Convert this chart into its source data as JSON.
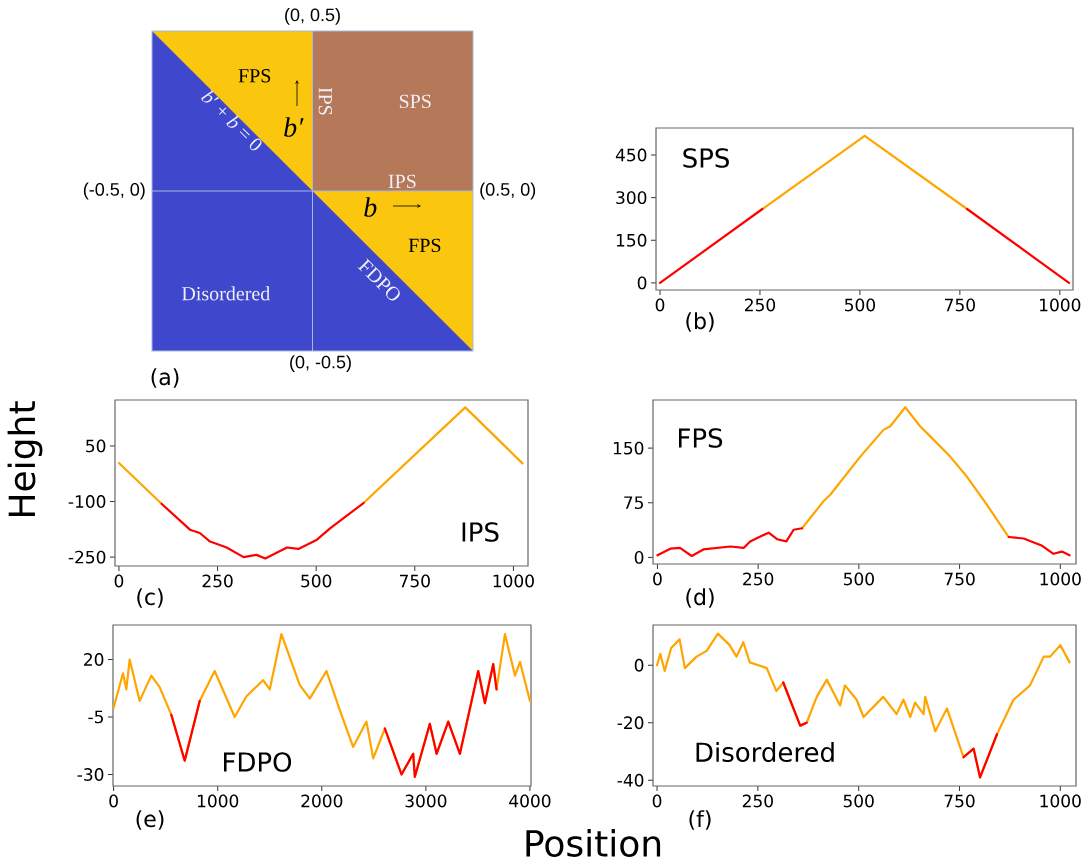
{
  "chart_data": [
    {
      "type": "other",
      "annotations": [
        "(0, 0.5)",
        "(-0.5, 0)",
        "(0.5, 0)",
        "(0, -0.5)",
        "FPS",
        "SPS",
        "IPS",
        "IPS",
        "FPS",
        "FDPO",
        "Disordered",
        "*b*′ + *b* = 0",
        "b′",
        "b",
        "(a)"
      ]
    },
    {
      "type": "line",
      "title": "SPS",
      "annotations": [
        "(b)"
      ],
      "x": [
        0,
        256,
        512,
        768,
        1023
      ],
      "series": [
        {
          "color": "#ffa500",
          "values": [
            null,
            260,
            517,
            260,
            null
          ]
        },
        {
          "color": "#ff0000",
          "values": [
            0,
            260,
            null,
            260,
            0
          ]
        }
      ],
      "xlim": [
        -10,
        1033
      ],
      "ylim": [
        -25,
        545
      ],
      "xticks": [
        0,
        250,
        500,
        750,
        1000
      ],
      "yticks": [
        0,
        150,
        300,
        450
      ]
    },
    {
      "type": "line",
      "title": "IPS",
      "ylabel": "Height",
      "annotations": [
        "(c)"
      ],
      "x": [
        0,
        108,
        180,
        205,
        231,
        273,
        316,
        349,
        371,
        426,
        455,
        502,
        536,
        620,
        878,
        1023
      ],
      "series": [
        {
          "color": "#ffa500",
          "values": [
            4,
            -106,
            null,
            null,
            null,
            null,
            null,
            null,
            null,
            null,
            null,
            null,
            null,
            -104,
            154,
            3
          ]
        },
        {
          "color": "#ff0000",
          "values": [
            null,
            -106,
            -176,
            -185,
            -208,
            -224,
            -250,
            -244,
            -254,
            -224,
            -228,
            -203,
            -172,
            -104,
            null,
            null
          ]
        }
      ],
      "xlim": [
        -10,
        1037
      ],
      "ylim": [
        -274,
        174
      ],
      "xticks": [
        0,
        250,
        500,
        750,
        1000
      ],
      "yticks": [
        -250,
        -100,
        50
      ]
    },
    {
      "type": "line",
      "title": "FPS",
      "annotations": [
        "(d)"
      ],
      "x": [
        0,
        32,
        56,
        85,
        114,
        181,
        214,
        230,
        276,
        297,
        320,
        338,
        359,
        412,
        429,
        503,
        561,
        578,
        615,
        652,
        681,
        727,
        768,
        818,
        872,
        909,
        955,
        983,
        1004,
        1023
      ],
      "series": [
        {
          "color": "#ffa500",
          "values": [
            null,
            null,
            null,
            null,
            null,
            null,
            null,
            null,
            null,
            null,
            null,
            null,
            40,
            77,
            86,
            138,
            175,
            180,
            206,
            180,
            164,
            138,
            111,
            72,
            28,
            null,
            null,
            null,
            null,
            null
          ]
        },
        {
          "color": "#ff0000",
          "values": [
            3,
            12,
            13,
            2,
            11,
            15,
            13,
            22,
            34,
            25,
            22,
            38,
            40,
            null,
            null,
            null,
            null,
            null,
            null,
            null,
            null,
            null,
            null,
            null,
            28,
            26,
            16,
            5,
            8,
            3
          ]
        }
      ],
      "xlim": [
        -11,
        1039
      ],
      "ylim": [
        -9,
        216
      ],
      "xticks": [
        0,
        250,
        500,
        750,
        1000
      ],
      "yticks": [
        0,
        75,
        150
      ]
    },
    {
      "type": "line",
      "title": "FDPO",
      "xlabel": "Position",
      "annotations": [
        "(e)"
      ],
      "x": [
        0,
        90,
        122,
        154,
        250,
        362,
        442,
        554,
        683,
        827,
        971,
        1163,
        1276,
        1436,
        1500,
        1612,
        1788,
        1885,
        2045,
        2173,
        2301,
        2429,
        2494,
        2606,
        2766,
        2878,
        2894,
        3038,
        3103,
        3215,
        3327,
        3503,
        3567,
        3647,
        3679,
        3760,
        3856,
        3904,
        4000
      ],
      "series": [
        {
          "color": "#ffa500",
          "values": [
            -1,
            14,
            7,
            20,
            2,
            13,
            8,
            -4,
            -24,
            2,
            15,
            -5,
            4,
            11,
            7,
            31,
            9,
            3,
            15,
            -2,
            -18,
            -7,
            -23,
            -10,
            -30,
            -21,
            -31,
            -8,
            -21,
            -7,
            -21,
            15,
            1,
            18,
            7,
            31,
            13,
            19,
            2
          ]
        },
        {
          "color": "#ff0000",
          "values": [
            null,
            null,
            null,
            null,
            null,
            null,
            null,
            -4,
            -24,
            2,
            null,
            null,
            null,
            null,
            null,
            null,
            null,
            null,
            null,
            null,
            null,
            null,
            null,
            -10,
            -30,
            -21,
            -31,
            -8,
            -21,
            -7,
            -21,
            15,
            1,
            18,
            7,
            null,
            null,
            null,
            null
          ]
        }
      ],
      "xlim": [
        -6,
        4010
      ],
      "ylim": [
        -35,
        35
      ],
      "xticks": [
        0,
        1000,
        2000,
        3000,
        4000
      ],
      "yticks": [
        -30,
        -5,
        20
      ]
    },
    {
      "type": "line",
      "title": "Disordered",
      "annotations": [
        "(f)"
      ],
      "x": [
        0,
        8,
        19,
        35,
        56,
        69,
        98,
        123,
        151,
        180,
        197,
        214,
        230,
        272,
        296,
        313,
        355,
        371,
        396,
        421,
        454,
        466,
        495,
        512,
        561,
        594,
        611,
        628,
        640,
        661,
        665,
        690,
        719,
        760,
        785,
        801,
        843,
        884,
        925,
        959,
        975,
        1000,
        1023
      ],
      "series": [
        {
          "color": "#ffa500",
          "values": [
            0,
            4,
            -2,
            6,
            9,
            -1,
            3,
            5,
            11,
            7,
            3,
            8,
            1,
            -1,
            -9,
            -6,
            -21,
            -20,
            -11,
            -5,
            -14,
            -7,
            -12,
            -18,
            -11,
            -17,
            -12,
            -18,
            -13,
            -17,
            -11,
            -23,
            -15,
            -32,
            -29,
            -39,
            -24,
            -12,
            -7,
            3,
            3,
            7,
            1
          ]
        },
        {
          "color": "#ff0000",
          "values": [
            null,
            null,
            null,
            null,
            null,
            null,
            null,
            null,
            null,
            null,
            null,
            null,
            null,
            null,
            null,
            -6,
            -21,
            -20,
            null,
            null,
            null,
            null,
            null,
            null,
            null,
            null,
            null,
            null,
            null,
            null,
            null,
            null,
            null,
            -32,
            -29,
            -39,
            -24,
            null,
            null,
            null,
            null,
            null,
            null
          ]
        }
      ],
      "xlim": [
        -10,
        1039
      ],
      "ylim": [
        -42,
        14
      ],
      "xticks": [
        0,
        250,
        500,
        750,
        1000
      ],
      "yticks": [
        -40,
        -20,
        0
      ]
    }
  ]
}
